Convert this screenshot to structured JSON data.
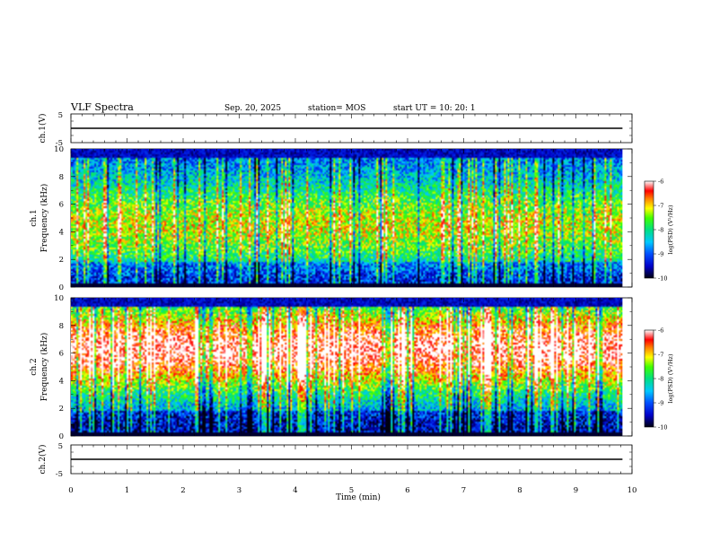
{
  "header": {
    "title": "VLF Spectra",
    "date": "Sep. 20, 2025",
    "station": "station= MOS",
    "start": "start  UT  =   10: 20: 1"
  },
  "colorbar_label": "log(PSD) (V²/Hz)",
  "chart_data": [
    {
      "type": "line",
      "panel": "waveform-ch1",
      "ylabel": "ch.1(V)",
      "ylim": [
        -5,
        5
      ],
      "yticks": [
        "5",
        "-5"
      ],
      "baseline": 0,
      "xlim": [
        0,
        10
      ]
    },
    {
      "type": "heatmap",
      "panel": "spectrogram-ch1",
      "ylabel": "ch.1\nFrequency (kHz)",
      "ylim": [
        0,
        10
      ],
      "yticks": [
        "0",
        "2",
        "4",
        "6",
        "8",
        "10"
      ],
      "xlim": [
        0,
        10
      ],
      "data_extent_min": 9.83,
      "colorbar": {
        "min": -10,
        "max": -6,
        "ticks": [
          "-6",
          "-7",
          "-8",
          "-9",
          "-10"
        ]
      },
      "band_center_khz": 4.5,
      "hot_level": 0.45
    },
    {
      "type": "heatmap",
      "panel": "spectrogram-ch2",
      "ylabel": "ch.2\nFrequency (kHz)",
      "ylim": [
        0,
        10
      ],
      "yticks": [
        "0",
        "2",
        "4",
        "6",
        "8",
        "10"
      ],
      "xlim": [
        0,
        10
      ],
      "data_extent_min": 9.83,
      "colorbar": {
        "min": -10,
        "max": -6,
        "ticks": [
          "-6",
          "-7",
          "-8",
          "-9",
          "-10"
        ]
      },
      "band_center_khz": 6.3,
      "hot_level": 0.75
    },
    {
      "type": "line",
      "panel": "waveform-ch2",
      "ylabel": "ch.2(V)",
      "ylim": [
        -5,
        5
      ],
      "yticks": [
        "5",
        "-5"
      ],
      "baseline": 0,
      "xlim": [
        0,
        10
      ]
    }
  ],
  "x_axis": {
    "label": "Time (min)",
    "ticks": [
      "0",
      "1",
      "2",
      "3",
      "4",
      "5",
      "6",
      "7",
      "8",
      "9",
      "10"
    ]
  }
}
